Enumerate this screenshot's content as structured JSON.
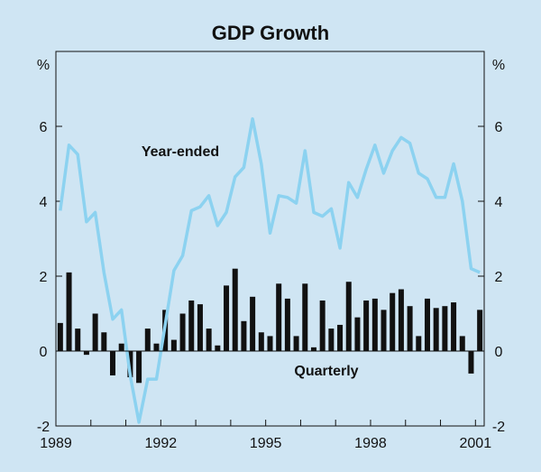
{
  "chart_data": {
    "type": "bar+line",
    "title": "GDP Growth",
    "ylabel_left": "%",
    "ylabel_right": "%",
    "ylim": [
      -2,
      8
    ],
    "yticks": [
      -2,
      0,
      2,
      4,
      6
    ],
    "xlim": [
      1989.0,
      2001.25
    ],
    "xticks": [
      {
        "value": 1989.0,
        "label": "1989"
      },
      {
        "value": 1992.0,
        "label": "1992"
      },
      {
        "value": 1995.0,
        "label": "1995"
      },
      {
        "value": 1998.0,
        "label": "1998"
      },
      {
        "value": 2001.0,
        "label": "2001"
      }
    ],
    "annotations": {
      "line": "Year-ended",
      "bars": "Quarterly"
    },
    "colors": {
      "bars": "#111111",
      "line": "#8cd2f0",
      "background": "#cfe5f3",
      "axis": "#111111"
    },
    "series": [
      {
        "name": "Quarterly",
        "kind": "bar",
        "values": [
          0.75,
          2.1,
          0.6,
          -0.1,
          1.0,
          0.5,
          -0.65,
          0.2,
          -0.7,
          -0.85,
          0.6,
          0.2,
          1.1,
          0.3,
          1.0,
          1.35,
          1.25,
          0.6,
          0.15,
          1.75,
          2.2,
          0.8,
          1.45,
          0.5,
          0.4,
          1.8,
          1.4,
          0.4,
          1.8,
          0.1,
          1.35,
          0.6,
          0.7,
          1.85,
          0.9,
          1.35,
          1.4,
          1.1,
          1.55,
          1.65,
          1.2,
          0.4,
          1.4,
          1.15,
          1.2,
          1.3,
          0.4,
          -0.6,
          1.1
        ]
      },
      {
        "name": "Year-ended",
        "kind": "line",
        "values": [
          3.75,
          5.5,
          5.25,
          3.45,
          3.7,
          2.1,
          0.85,
          1.1,
          -0.65,
          -1.9,
          -0.75,
          -0.75,
          0.7,
          2.15,
          2.55,
          3.75,
          3.85,
          4.15,
          3.35,
          3.7,
          4.65,
          4.9,
          6.2,
          5.0,
          3.15,
          4.15,
          4.1,
          3.95,
          5.35,
          3.7,
          3.6,
          3.8,
          2.75,
          4.5,
          4.1,
          4.85,
          5.5,
          4.75,
          5.35,
          5.7,
          5.55,
          4.75,
          4.6,
          4.1,
          4.1,
          5.0,
          4.0,
          2.2,
          2.1
        ]
      }
    ]
  }
}
